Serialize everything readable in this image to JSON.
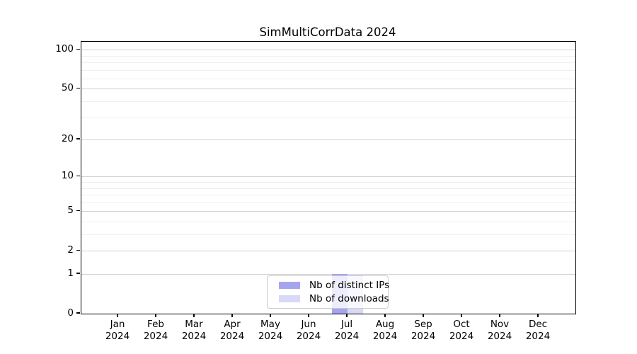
{
  "chart_data": {
    "type": "bar",
    "title": "SimMultiCorrData 2024",
    "categories": [
      "Jan 2024",
      "Feb 2024",
      "Mar 2024",
      "Apr 2024",
      "May 2024",
      "Jun 2024",
      "Jul 2024",
      "Aug 2024",
      "Sep 2024",
      "Oct 2024",
      "Nov 2024",
      "Dec 2024"
    ],
    "series": [
      {
        "name": "Nb of distinct IPs",
        "color": "#a5a5ed",
        "values": [
          0,
          0,
          0,
          0,
          0,
          0,
          1,
          0,
          0,
          0,
          0,
          0
        ]
      },
      {
        "name": "Nb of downloads",
        "color": "#d8d8f7",
        "values": [
          0,
          0,
          0,
          0,
          0,
          0,
          1,
          0,
          0,
          0,
          0,
          0
        ]
      }
    ],
    "xlabel": "",
    "ylabel": "",
    "yscale": "log1p",
    "ylim": [
      0,
      115
    ],
    "yticks": [
      0,
      1,
      2,
      5,
      10,
      20,
      50,
      100
    ],
    "minor_gridlines": [
      3,
      4,
      6,
      7,
      8,
      9,
      30,
      40,
      60,
      70,
      80,
      90
    ],
    "grid": "horizontal",
    "legend_position": "lower center inside",
    "colors": {
      "major_grid": "#d2d2d2",
      "minor_grid": "#efefef",
      "axis": "#000000",
      "background": "#ffffff"
    }
  }
}
